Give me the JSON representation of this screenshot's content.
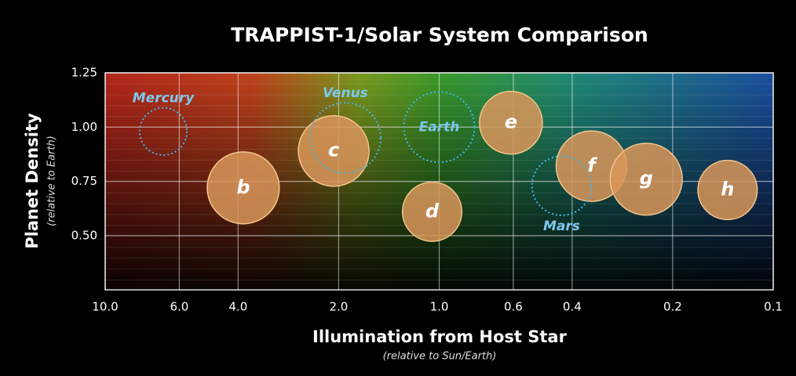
{
  "chart_data": {
    "type": "bubble",
    "title": "TRAPPIST-1/Solar System Comparison",
    "y_label": "Planet Density",
    "y_sublabel": "(relative to Earth)",
    "x_label": "Illumination from Host Star",
    "x_sublabel": "(relative to Sun/Earth)",
    "x_scale": "log",
    "xlim": [
      10,
      0.1
    ],
    "ylim": [
      0.25,
      1.25
    ],
    "xticks": [
      {
        "value": 10,
        "label": "10.0"
      },
      {
        "value": 6,
        "label": "6.0"
      },
      {
        "value": 4,
        "label": "4.0"
      },
      {
        "value": 2,
        "label": "2.0"
      },
      {
        "value": 1,
        "label": "1.0"
      },
      {
        "value": 0.6,
        "label": "0.6"
      },
      {
        "value": 0.4,
        "label": "0.4"
      },
      {
        "value": 0.2,
        "label": "0.2"
      },
      {
        "value": 0.1,
        "label": "0.1"
      }
    ],
    "yticks": [
      {
        "value": 1.25,
        "label": "1.25"
      },
      {
        "value": 1,
        "label": "1.00"
      },
      {
        "value": 0.75,
        "label": "0.75"
      },
      {
        "value": 0.5,
        "label": "0.50"
      }
    ],
    "grid": true,
    "series": [
      {
        "color": "#d9975a",
        "style": "solid",
        "label_position": "center",
        "points": [
          {
            "label": "b",
            "x": 3.86,
            "y": 0.72,
            "size": 1.02
          },
          {
            "label": "c",
            "x": 2.07,
            "y": 0.89,
            "size": 1.0
          },
          {
            "label": "d",
            "x": 1.05,
            "y": 0.61,
            "size": 0.84
          },
          {
            "label": "e",
            "x": 0.61,
            "y": 1.02,
            "size": 0.89
          },
          {
            "label": "f",
            "x": 0.35,
            "y": 0.82,
            "size": 1.0
          },
          {
            "label": "g",
            "x": 0.24,
            "y": 0.76,
            "size": 1.02
          },
          {
            "label": "h",
            "x": 0.137,
            "y": 0.71,
            "size": 0.84
          }
        ]
      },
      {
        "color": "#3fb6e8",
        "style": "dotted",
        "points": [
          {
            "label": "Mercury",
            "x": 6.7,
            "y": 0.98,
            "size": 0.67,
            "label_position": "above"
          },
          {
            "label": "Venus",
            "x": 1.91,
            "y": 0.95,
            "size": 1.0,
            "label_position": "above"
          },
          {
            "label": "Earth",
            "x": 1.0,
            "y": 1.0,
            "size": 1.0,
            "label_position": "center"
          },
          {
            "label": "Mars",
            "x": 0.43,
            "y": 0.73,
            "size": 0.84,
            "label_position": "below"
          }
        ]
      }
    ]
  }
}
